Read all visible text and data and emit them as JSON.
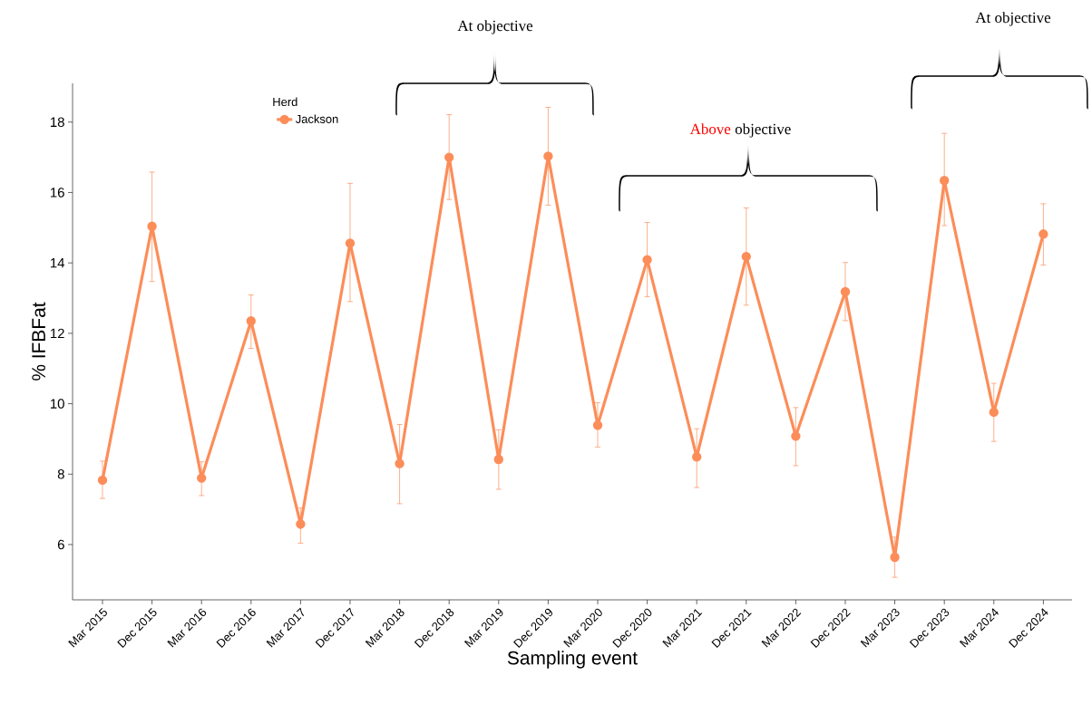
{
  "chart_data": {
    "type": "line",
    "xlabel": "Sampling event",
    "ylabel": "% IFBFat",
    "legend_title": "Herd",
    "categories": [
      "Mar 2015",
      "Dec 2015",
      "Mar 2016",
      "Dec 2016",
      "Mar 2017",
      "Dec 2017",
      "Mar 2018",
      "Dec 2018",
      "Mar 2019",
      "Dec 2019",
      "Mar 2020",
      "Dec 2020",
      "Mar 2021",
      "Dec 2021",
      "Mar 2022",
      "Dec 2022",
      "Mar 2023",
      "Dec 2023",
      "Mar 2024",
      "Dec 2024"
    ],
    "series": [
      {
        "name": "Jackson",
        "color": "#fc8d59",
        "values": [
          7.83,
          15.04,
          7.89,
          12.35,
          6.58,
          14.56,
          8.3,
          17.0,
          8.42,
          17.03,
          9.39,
          14.09,
          8.49,
          14.18,
          9.08,
          13.18,
          5.64,
          16.34,
          9.76,
          14.82
        ],
        "errors": [
          [
            7.31,
            8.37
          ],
          [
            13.47,
            16.58
          ],
          [
            7.39,
            8.35
          ],
          [
            11.57,
            13.09
          ],
          [
            6.04,
            7.04
          ],
          [
            12.9,
            16.26
          ],
          [
            7.16,
            9.41
          ],
          [
            15.8,
            18.21
          ],
          [
            7.57,
            9.26
          ],
          [
            15.64,
            18.42
          ],
          [
            8.77,
            10.03
          ],
          [
            13.04,
            15.15
          ],
          [
            7.62,
            9.29
          ],
          [
            12.8,
            15.56
          ],
          [
            8.24,
            9.89
          ],
          [
            12.36,
            14.01
          ],
          [
            5.07,
            6.21
          ],
          [
            15.06,
            17.68
          ],
          [
            8.93,
            10.58
          ],
          [
            13.94,
            15.68
          ]
        ]
      }
    ],
    "ylim": [
      4.43,
      19.1
    ],
    "yticks": [
      6,
      8,
      10,
      12,
      14,
      16,
      18
    ],
    "grid": false,
    "legend": "top left",
    "marker": "circle",
    "line_style": "solid",
    "annotations": [
      "At objective",
      "Above",
      "objective",
      "At objective"
    ]
  }
}
